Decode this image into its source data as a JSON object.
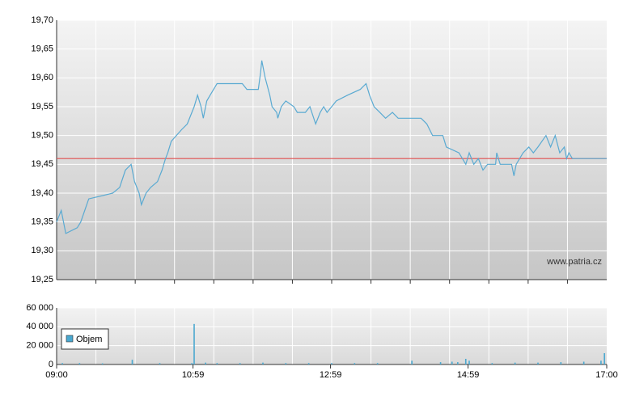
{
  "chart_data": [
    {
      "type": "line",
      "x": [
        "09:00",
        "09:04",
        "09:08",
        "09:18",
        "09:21",
        "09:28",
        "09:49",
        "09:55",
        "10:00",
        "10:05",
        "10:08",
        "10:12",
        "10:14",
        "10:18",
        "10:22",
        "10:28",
        "10:32",
        "10:35",
        "10:37",
        "10:40",
        "10:49",
        "10:54",
        "11:00",
        "11:03",
        "11:06",
        "11:08",
        "11:11",
        "11:14",
        "11:20",
        "11:42",
        "11:46",
        "11:56",
        "11:58",
        "11:59",
        "12:02",
        "12:06",
        "12:08",
        "12:12",
        "12:13",
        "12:16",
        "12:20",
        "12:27",
        "12:30",
        "12:37",
        "12:41",
        "12:46",
        "12:50",
        "12:53",
        "12:56",
        "13:04",
        "13:14",
        "13:25",
        "13:30",
        "13:33",
        "13:37",
        "13:42",
        "13:47",
        "13:53",
        "13:58",
        "14:18",
        "14:23",
        "14:28",
        "14:37",
        "14:40",
        "14:51",
        "14:57",
        "15:00",
        "15:04",
        "15:08",
        "15:12",
        "15:16",
        "15:23",
        "15:24",
        "15:27",
        "15:37",
        "15:39",
        "15:41",
        "15:47",
        "15:52",
        "15:56",
        "16:00",
        "16:07",
        "16:11",
        "16:15",
        "16:19",
        "16:23",
        "16:25",
        "16:27",
        "16:30",
        "17:00"
      ],
      "values": [
        19.35,
        19.37,
        19.33,
        19.34,
        19.35,
        19.39,
        19.4,
        19.41,
        19.44,
        19.45,
        19.42,
        19.4,
        19.38,
        19.4,
        19.41,
        19.42,
        19.44,
        19.46,
        19.47,
        19.49,
        19.51,
        19.52,
        19.55,
        19.57,
        19.55,
        19.53,
        19.56,
        19.57,
        19.59,
        19.59,
        19.58,
        19.58,
        19.61,
        19.63,
        19.6,
        19.57,
        19.55,
        19.54,
        19.53,
        19.55,
        19.56,
        19.55,
        19.54,
        19.54,
        19.55,
        19.52,
        19.54,
        19.55,
        19.54,
        19.56,
        19.57,
        19.58,
        19.59,
        19.57,
        19.55,
        19.54,
        19.53,
        19.54,
        19.53,
        19.53,
        19.52,
        19.5,
        19.5,
        19.48,
        19.47,
        19.45,
        19.47,
        19.45,
        19.46,
        19.44,
        19.45,
        19.45,
        19.47,
        19.45,
        19.45,
        19.43,
        19.45,
        19.47,
        19.48,
        19.47,
        19.48,
        19.5,
        19.48,
        19.5,
        19.47,
        19.48,
        19.46,
        19.47,
        19.46,
        19.46
      ],
      "color": "#5aaad2",
      "reference_line": {
        "value": 19.46,
        "color": "#e05050"
      },
      "xlim": [
        "09:00",
        "17:00"
      ],
      "ylim": [
        19.25,
        19.7
      ],
      "yticks": [
        {
          "value": 19.25,
          "label": "19,25"
        },
        {
          "value": 19.3,
          "label": "19,30"
        },
        {
          "value": 19.35,
          "label": "19,35"
        },
        {
          "value": 19.4,
          "label": "19,40"
        },
        {
          "value": 19.45,
          "label": "19,45"
        },
        {
          "value": 19.5,
          "label": "19,50"
        },
        {
          "value": 19.55,
          "label": "19,55"
        },
        {
          "value": 19.6,
          "label": "19,60"
        },
        {
          "value": 19.65,
          "label": "19,65"
        },
        {
          "value": 19.7,
          "label": "19,70"
        }
      ],
      "annotation": "www.patria.cz",
      "grid": true
    },
    {
      "type": "bar",
      "series": [
        {
          "name": "Objem",
          "color": "#4aa8d0",
          "x": [
            "09:05",
            "09:20",
            "09:40",
            "10:06",
            "10:30",
            "10:58",
            "11:00",
            "11:10",
            "11:20",
            "11:40",
            "12:00",
            "12:20",
            "12:40",
            "13:00",
            "13:20",
            "13:40",
            "14:10",
            "14:35",
            "14:45",
            "14:50",
            "14:57",
            "15:00",
            "15:20",
            "15:40",
            "16:00",
            "16:20",
            "16:40",
            "16:55",
            "16:58"
          ],
          "values": [
            1500,
            1500,
            1200,
            5000,
            1500,
            1500,
            43000,
            2000,
            1500,
            1500,
            2000,
            1500,
            1500,
            1500,
            1500,
            1500,
            4000,
            2500,
            3000,
            2500,
            6000,
            4000,
            1500,
            2000,
            2000,
            2500,
            3000,
            4000,
            12000
          ]
        }
      ],
      "xlim": [
        "09:00",
        "17:00"
      ],
      "xticks": [
        "09:00",
        "10:59",
        "12:59",
        "14:59",
        "17:00"
      ],
      "ylim": [
        0,
        60000
      ],
      "yticks": [
        0,
        {
          "value": 20000,
          "label": "20 000"
        },
        {
          "value": 40000,
          "label": "40 000"
        },
        {
          "value": 60000,
          "label": "60 000"
        }
      ],
      "grid": true
    }
  ]
}
